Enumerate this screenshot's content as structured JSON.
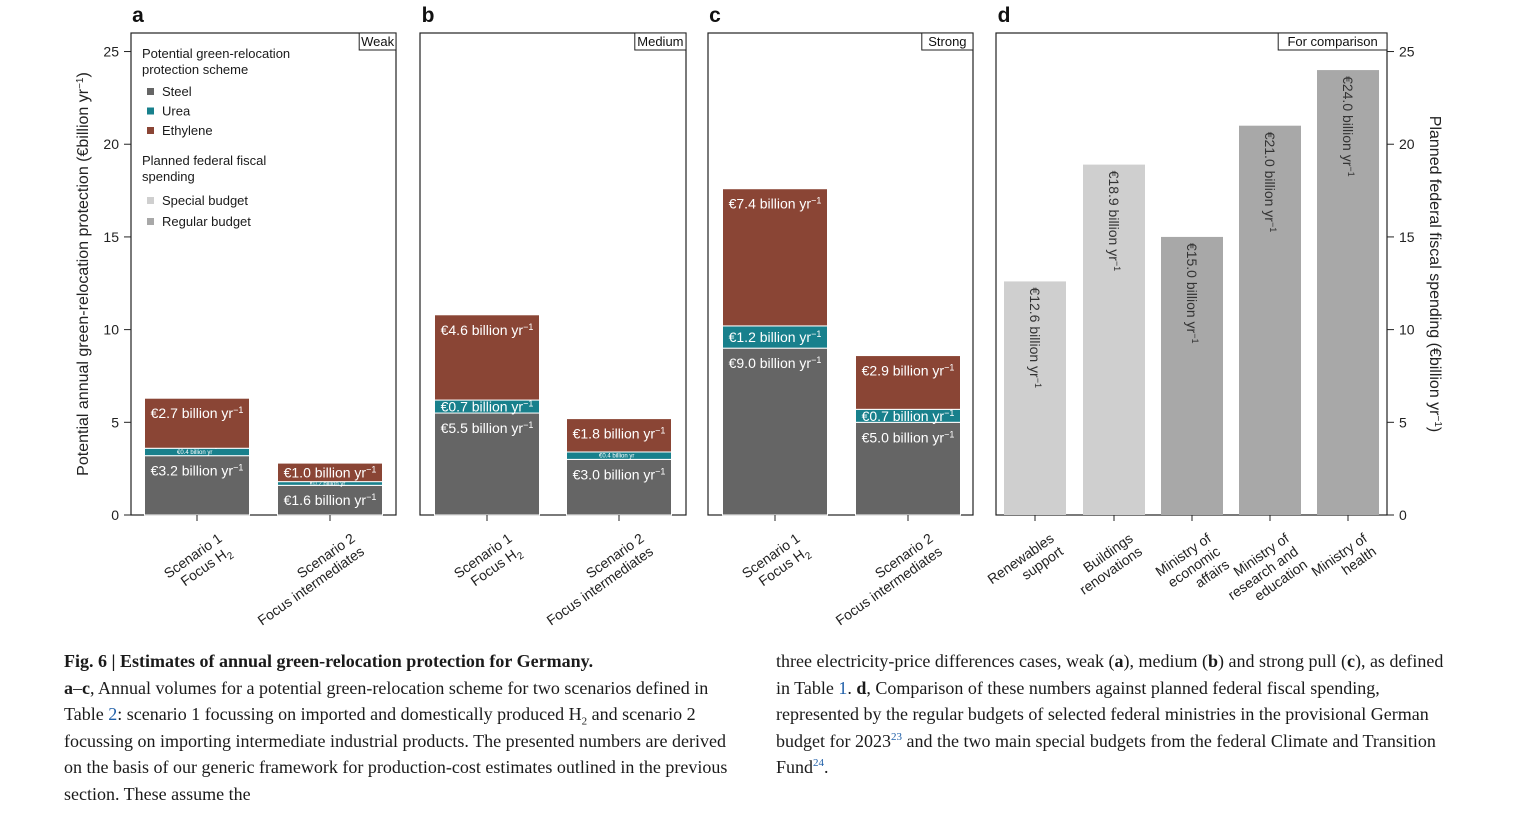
{
  "chart_data": [
    {
      "type": "bar",
      "stacked": true,
      "panel_label": "a",
      "case_label": "Weak",
      "categories": [
        "Scenario 1",
        "Scenario 2"
      ],
      "category_lines": [
        [
          "Scenario 1",
          "Focus H₂"
        ],
        [
          "Scenario 2",
          "Focus intermediates"
        ]
      ],
      "series": [
        {
          "name": "Steel",
          "values": [
            3.2,
            1.6
          ],
          "labels": [
            "€3.2 billion yr",
            "€1.6 billion yr"
          ]
        },
        {
          "name": "Urea",
          "values": [
            0.4,
            0.2
          ],
          "labels": [
            "€0.4 billion yr",
            "€0.2 billion yr"
          ]
        },
        {
          "name": "Ethylene",
          "values": [
            2.7,
            1.0
          ],
          "labels": [
            "€2.7 billion yr",
            "€1.0 billion yr"
          ]
        }
      ],
      "ylim": [
        0,
        26
      ],
      "yticks": [
        0,
        5,
        10,
        15,
        20,
        25
      ],
      "ylabel": "Potential annual green-relocation protection (€billion yr",
      "legend": {
        "placement": "top-left",
        "group1_title": [
          "Potential green-relocation",
          "protection scheme"
        ],
        "group1_items": [
          "Steel",
          "Urea",
          "Ethylene"
        ],
        "group2_title": [
          "Planned federal fiscal",
          "spending"
        ],
        "group2_items": [
          "Special budget",
          "Regular budget"
        ]
      }
    },
    {
      "type": "bar",
      "stacked": true,
      "panel_label": "b",
      "case_label": "Medium",
      "categories": [
        "Scenario 1",
        "Scenario 2"
      ],
      "category_lines": [
        [
          "Scenario 1",
          "Focus H₂"
        ],
        [
          "Scenario 2",
          "Focus intermediates"
        ]
      ],
      "series": [
        {
          "name": "Steel",
          "values": [
            5.5,
            3.0
          ],
          "labels": [
            "€5.5 billion yr",
            "€3.0 billion yr"
          ]
        },
        {
          "name": "Urea",
          "values": [
            0.7,
            0.4
          ],
          "labels": [
            "€0.7 billion yr",
            "€0.4 billion yr"
          ]
        },
        {
          "name": "Ethylene",
          "values": [
            4.6,
            1.8
          ],
          "labels": [
            "€4.6 billion yr",
            "€1.8 billion yr"
          ]
        }
      ],
      "ylim": [
        0,
        26
      ]
    },
    {
      "type": "bar",
      "stacked": true,
      "panel_label": "c",
      "case_label": "Strong",
      "categories": [
        "Scenario 1",
        "Scenario 2"
      ],
      "category_lines": [
        [
          "Scenario 1",
          "Focus H₂"
        ],
        [
          "Scenario 2",
          "Focus intermediates"
        ]
      ],
      "series": [
        {
          "name": "Steel",
          "values": [
            9.0,
            5.0
          ],
          "labels": [
            "€9.0 billion yr",
            "€5.0 billion yr"
          ]
        },
        {
          "name": "Urea",
          "values": [
            1.2,
            0.7
          ],
          "labels": [
            "€1.2 billion yr",
            "€0.7 billion yr"
          ]
        },
        {
          "name": "Ethylene",
          "values": [
            7.4,
            2.9
          ],
          "labels": [
            "€7.4 billion yr",
            "€2.9 billion yr"
          ]
        }
      ],
      "ylim": [
        0,
        26
      ]
    },
    {
      "type": "bar",
      "panel_label": "d",
      "case_label": "For comparison",
      "categories": [
        "Renewables support",
        "Buildings renovations",
        "Ministry of economic affairs",
        "Ministry of research and education",
        "Ministry of health"
      ],
      "category_lines": [
        [
          "Renewables",
          "support"
        ],
        [
          "Buildings",
          "renovations"
        ],
        [
          "Ministry of",
          "economic",
          "affairs"
        ],
        [
          "Ministry of",
          "research and",
          "education"
        ],
        [
          "Ministry of",
          "health"
        ]
      ],
      "values": [
        12.6,
        18.9,
        15.0,
        21.0,
        24.0
      ],
      "value_labels": [
        "€12.6 billion yr",
        "€18.9 billion yr",
        "€15.0 billion yr",
        "€21.0 billion yr",
        "€24.0 billion yr"
      ],
      "budget_type": [
        "Special budget",
        "Special budget",
        "Regular budget",
        "Regular budget",
        "Regular budget"
      ],
      "ylim": [
        0,
        26
      ],
      "yticks": [
        0,
        5,
        10,
        15,
        20,
        25
      ],
      "ylabel": "Planned federal fiscal spending (€billion yr"
    }
  ],
  "unit_superscript": "−1",
  "colors": {
    "Steel": "#656565",
    "Urea": "#18808c",
    "Ethylene": "#8a4535",
    "Special budget": "#cfcfcf",
    "Regular budget": "#a8a8a8"
  },
  "caption": {
    "fig_number": "Fig. 6 | ",
    "fig_title": "Estimates of annual green-relocation protection for Germany.",
    "p_ac_label": "a",
    "p_ac_dash": "–",
    "p_ac_label2": "c",
    "text1": ", Annual volumes for a potential green-relocation scheme for two scenarios defined in Table ",
    "ref_table2": "2",
    "text2": ": scenario 1 focussing on imported and domestically produced H",
    "h2_sub": "2",
    "text3": " and scenario 2 focussing on importing intermediate industrial products. The presented numbers are derived on the basis of our generic framework for production-cost estimates outlined in the previous section. These assume the",
    "text4": "three electricity-price differences cases, weak (",
    "lbl_a": "a",
    "text5": "), medium (",
    "lbl_b": "b",
    "text6": ") and strong pull (",
    "lbl_c": "c",
    "text7": "), as defined in Table ",
    "ref_table1": "1",
    "text8": ". ",
    "lbl_d": "d",
    "text9": ", Comparison of these numbers against planned federal fiscal spending, represented by the regular budgets of selected federal ministries in the provisional German budget for 2023",
    "ref23": "23",
    "text10": " and the two main special budgets from the federal Climate and Transition Fund",
    "ref24": "24",
    "text11": "."
  }
}
